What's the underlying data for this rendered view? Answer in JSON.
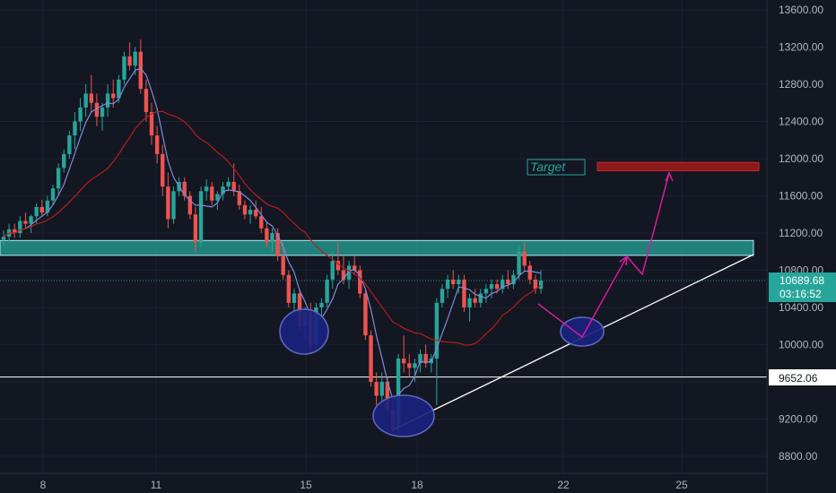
{
  "chart_data": {
    "type": "candlestick",
    "x_ticks": [
      "8",
      "11",
      "15",
      "18",
      "22",
      "25"
    ],
    "y_ticks": [
      "13600.00",
      "13200.00",
      "12800.00",
      "12400.00",
      "12000.00",
      "11600.00",
      "11200.00",
      "10800.00",
      "10400.00",
      "10000.00",
      "9600.00",
      "9200.00",
      "8800.00"
    ],
    "ylim": [
      8700,
      13700
    ],
    "price_label": "10689.68",
    "countdown_label": "03:16:52",
    "line_level_label": "9652.06",
    "line_level": 9652.06,
    "annotation_target": "Target",
    "resistance_zone": [
      10960,
      11120
    ],
    "target_zone": [
      11870,
      11960
    ],
    "candles": [
      [
        11130,
        11230,
        11060,
        11160
      ],
      [
        11160,
        11300,
        11100,
        11240
      ],
      [
        11240,
        11300,
        11150,
        11200
      ],
      [
        11200,
        11380,
        11150,
        11330
      ],
      [
        11330,
        11420,
        11250,
        11300
      ],
      [
        11300,
        11400,
        11200,
        11380
      ],
      [
        11380,
        11520,
        11300,
        11480
      ],
      [
        11480,
        11560,
        11380,
        11420
      ],
      [
        11420,
        11600,
        11380,
        11550
      ],
      [
        11550,
        11720,
        11500,
        11680
      ],
      [
        11680,
        11950,
        11600,
        11900
      ],
      [
        11900,
        12100,
        11850,
        12050
      ],
      [
        12050,
        12300,
        12000,
        12250
      ],
      [
        12250,
        12500,
        12100,
        12400
      ],
      [
        12400,
        12650,
        12300,
        12550
      ],
      [
        12550,
        12800,
        12450,
        12700
      ],
      [
        12700,
        12900,
        12500,
        12600
      ],
      [
        12600,
        12700,
        12350,
        12450
      ],
      [
        12450,
        12600,
        12300,
        12550
      ],
      [
        12550,
        12800,
        12450,
        12700
      ],
      [
        12700,
        12850,
        12550,
        12650
      ],
      [
        12650,
        12900,
        12600,
        12850
      ],
      [
        12850,
        13150,
        12800,
        13100
      ],
      [
        13100,
        13250,
        12950,
        13000
      ],
      [
        13000,
        13200,
        12900,
        13150
      ],
      [
        13150,
        13280,
        12700,
        12750
      ],
      [
        12750,
        12850,
        12400,
        12500
      ],
      [
        12500,
        12600,
        12150,
        12250
      ],
      [
        12250,
        12350,
        11950,
        12050
      ],
      [
        12050,
        12150,
        11600,
        11700
      ],
      [
        11700,
        11850,
        11250,
        11350
      ],
      [
        11350,
        11700,
        11300,
        11650
      ],
      [
        11650,
        11800,
        11600,
        11750
      ],
      [
        11750,
        11800,
        11550,
        11600
      ],
      [
        11600,
        11650,
        11350,
        11400
      ],
      [
        11400,
        11480,
        11000,
        11100
      ],
      [
        11100,
        11700,
        11050,
        11650
      ],
      [
        11650,
        11780,
        11550,
        11700
      ],
      [
        11700,
        11750,
        11500,
        11550
      ],
      [
        11550,
        11650,
        11450,
        11620
      ],
      [
        11620,
        11750,
        11550,
        11700
      ],
      [
        11700,
        11800,
        11650,
        11750
      ],
      [
        11750,
        11950,
        11600,
        11650
      ],
      [
        11650,
        11720,
        11450,
        11500
      ],
      [
        11500,
        11550,
        11350,
        11400
      ],
      [
        11400,
        11500,
        11300,
        11450
      ],
      [
        11450,
        11550,
        11350,
        11380
      ],
      [
        11380,
        11480,
        11200,
        11250
      ],
      [
        11250,
        11320,
        11050,
        11100
      ],
      [
        11100,
        11250,
        11000,
        11200
      ],
      [
        11200,
        11250,
        10900,
        10950
      ],
      [
        10950,
        11100,
        10700,
        10750
      ],
      [
        10750,
        10800,
        10400,
        10450
      ],
      [
        10450,
        10600,
        10300,
        10550
      ],
      [
        10550,
        10600,
        10150,
        10200
      ],
      [
        10200,
        10400,
        10050,
        10350
      ],
      [
        10350,
        10450,
        9900,
        10000
      ],
      [
        10000,
        10450,
        9950,
        10400
      ],
      [
        10400,
        10500,
        10300,
        10450
      ],
      [
        10450,
        10750,
        10400,
        10700
      ],
      [
        10700,
        11000,
        10600,
        10900
      ],
      [
        10900,
        11100,
        10750,
        10800
      ],
      [
        10800,
        10950,
        10650,
        10700
      ],
      [
        10700,
        10900,
        10600,
        10850
      ],
      [
        10850,
        10950,
        10750,
        10800
      ],
      [
        10800,
        10850,
        10500,
        10550
      ],
      [
        10550,
        10600,
        10050,
        10100
      ],
      [
        10100,
        10150,
        9550,
        9600
      ],
      [
        9600,
        9700,
        9350,
        9450
      ],
      [
        9450,
        9700,
        9400,
        9600
      ],
      [
        9600,
        9650,
        9250,
        9300
      ],
      [
        9300,
        9400,
        9050,
        9100
      ],
      [
        9100,
        9900,
        9050,
        9850
      ],
      [
        9850,
        10100,
        9700,
        9800
      ],
      [
        9800,
        9900,
        9650,
        9750
      ],
      [
        9750,
        9850,
        9600,
        9800
      ],
      [
        9800,
        9950,
        9700,
        9900
      ],
      [
        9900,
        10000,
        9750,
        9800
      ],
      [
        9800,
        9900,
        9700,
        9850
      ],
      [
        9850,
        10500,
        9350,
        10450
      ],
      [
        10450,
        10650,
        10400,
        10600
      ],
      [
        10600,
        10750,
        10500,
        10700
      ],
      [
        10700,
        10800,
        10600,
        10650
      ],
      [
        10650,
        10750,
        10550,
        10700
      ],
      [
        10700,
        10750,
        10350,
        10400
      ],
      [
        10400,
        10550,
        10250,
        10500
      ],
      [
        10500,
        10600,
        10400,
        10450
      ],
      [
        10450,
        10600,
        10400,
        10550
      ],
      [
        10550,
        10650,
        10450,
        10600
      ],
      [
        10600,
        10700,
        10500,
        10650
      ],
      [
        10650,
        10700,
        10550,
        10600
      ],
      [
        10600,
        10750,
        10550,
        10700
      ],
      [
        10700,
        10800,
        10600,
        10650
      ],
      [
        10650,
        10800,
        10600,
        10750
      ],
      [
        10750,
        11050,
        10700,
        11000
      ],
      [
        11000,
        11100,
        10800,
        10850
      ],
      [
        10850,
        10900,
        10650,
        10700
      ],
      [
        10700,
        10750,
        10550,
        10600
      ],
      [
        10600,
        10800,
        10550,
        10690
      ]
    ]
  }
}
